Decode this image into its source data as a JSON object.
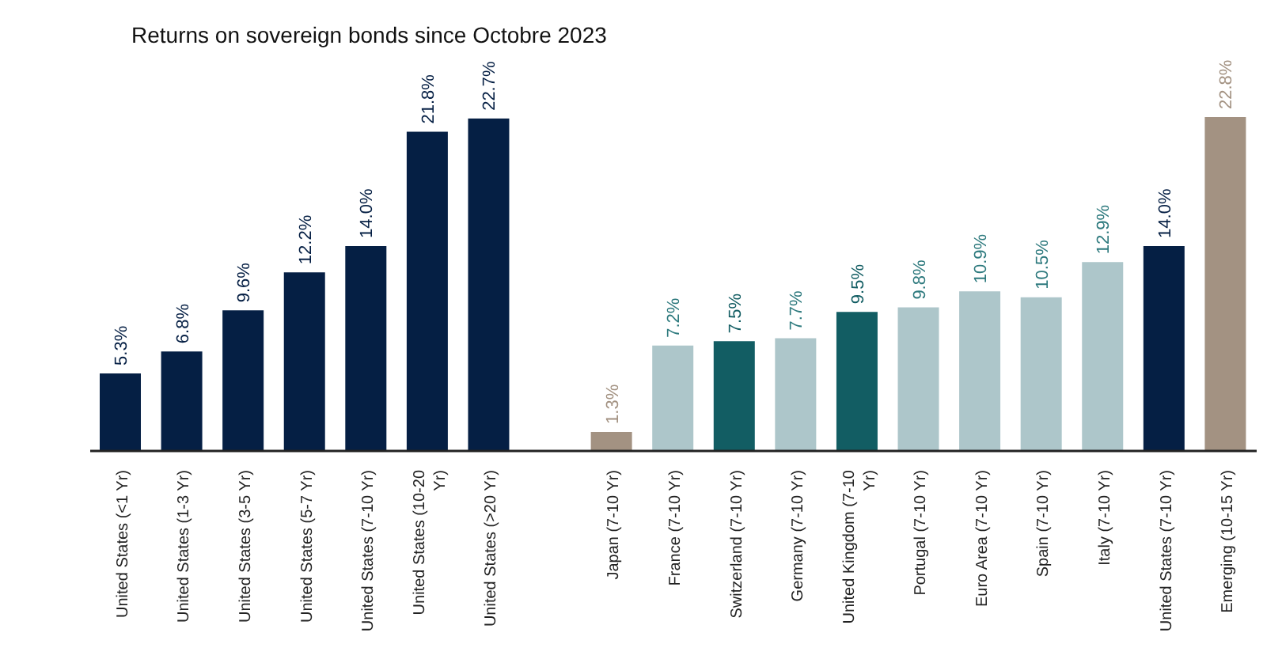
{
  "chart_data": {
    "type": "bar",
    "title": "Returns on sovereign bonds since Octobre 2023",
    "categories": [
      "United States (<1 Yr)",
      "United States (1-3 Yr)",
      "United States (3-5 Yr)",
      "United States (5-7 Yr)",
      "United States (7-10 Yr)",
      "United States (10-20 Yr)",
      "United States (>20 Yr)",
      null,
      "Japan (7-10 Yr)",
      "France (7-10 Yr)",
      "Switzerland (7-10 Yr)",
      "Germany (7-10 Yr)",
      "United Kingdom (7-10 Yr)",
      "Portugal (7-10 Yr)",
      "Euro Area (7-10 Yr)",
      "Spain (7-10 Yr)",
      "Italy (7-10 Yr)",
      "United States (7-10 Yr)",
      "Emerging (10-15 Yr)"
    ],
    "values": [
      5.3,
      6.8,
      9.6,
      12.2,
      14.0,
      21.8,
      22.7,
      null,
      1.3,
      7.2,
      7.5,
      7.7,
      9.5,
      9.8,
      10.9,
      10.5,
      12.9,
      14.0,
      22.8
    ],
    "value_labels": [
      "5.3%",
      "6.8%",
      "9.6%",
      "12.2%",
      "14.0%",
      "21.8%",
      "22.7%",
      null,
      "1.3%",
      "7.2%",
      "7.5%",
      "7.7%",
      "9.5%",
      "9.8%",
      "10.9%",
      "10.5%",
      "12.9%",
      "14.0%",
      "22.8%"
    ],
    "colors": [
      "#051f44",
      "#051f44",
      "#051f44",
      "#051f44",
      "#051f44",
      "#051f44",
      "#051f44",
      "#051f44",
      "#a39282",
      "#adc6ca",
      "#125d63",
      "#adc6ca",
      "#125d63",
      "#adc6ca",
      "#adc6ca",
      "#adc6ca",
      "#adc6ca",
      "#051f44",
      "#a39282"
    ],
    "grid": false,
    "legend": false
  }
}
